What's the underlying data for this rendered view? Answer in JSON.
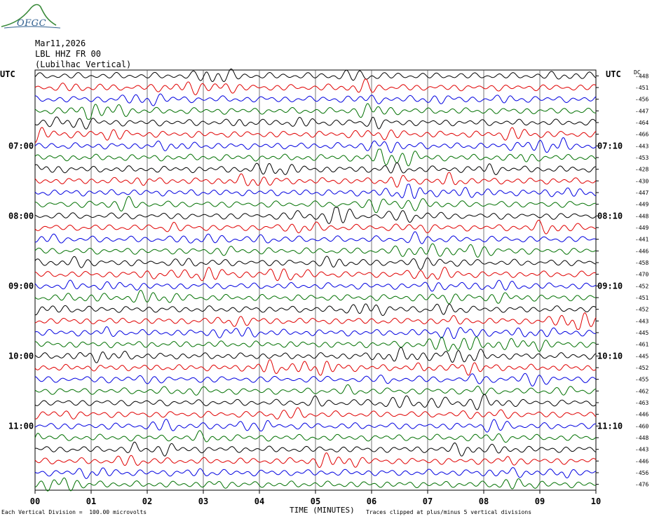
{
  "header": {
    "logo_text": "OFGC",
    "date": "Mar11,2026",
    "station": "LBL HHZ FR 00",
    "location": "(Lubilhac Vertical)"
  },
  "chart_data": {
    "type": "line",
    "title": "",
    "xlabel": "TIME (MINUTES)",
    "ylabel": "",
    "x_ticks": [
      "00",
      "01",
      "02",
      "03",
      "04",
      "05",
      "06",
      "07",
      "08",
      "09",
      "10"
    ],
    "xlim": [
      0,
      10
    ],
    "left_label_header": "UTC",
    "right_label_header": "UTC",
    "dc_header": "DC",
    "left_hour_labels": [
      {
        "row": 6,
        "text": "07:00"
      },
      {
        "row": 12,
        "text": "08:00"
      },
      {
        "row": 18,
        "text": "09:00"
      },
      {
        "row": 24,
        "text": "10:00"
      },
      {
        "row": 30,
        "text": "11:00"
      }
    ],
    "right_hour_labels": [
      {
        "row": 6,
        "text": "07:10"
      },
      {
        "row": 12,
        "text": "08:10"
      },
      {
        "row": 18,
        "text": "09:10"
      },
      {
        "row": 24,
        "text": "10:10"
      },
      {
        "row": 30,
        "text": "11:10"
      }
    ],
    "trace_colors": [
      "#000000",
      "#e00000",
      "#0000e0",
      "#007000"
    ],
    "dc_offsets": [
      "-448",
      "-451",
      "-456",
      "-447",
      "-464",
      "-466",
      "-443",
      "-453",
      "-428",
      "-430",
      "-447",
      "-449",
      "-448",
      "-449",
      "-441",
      "-446",
      "-458",
      "-470",
      "-452",
      "-451",
      "-452",
      "-443",
      "-445",
      "-461",
      "-445",
      "-452",
      "-455",
      "-462",
      "-463",
      "-446",
      "-460",
      "-448",
      "-443",
      "-446",
      "-456",
      "-476"
    ],
    "grid": true,
    "vertical_division": "100.00 microvolts",
    "clipping": "plus/minus 5 vertical divisions"
  },
  "footer": {
    "left_note": "Each Vertical Division =  100.00 microvolts",
    "right_note": "Traces clipped at plus/minus 5 vertical divisions"
  }
}
